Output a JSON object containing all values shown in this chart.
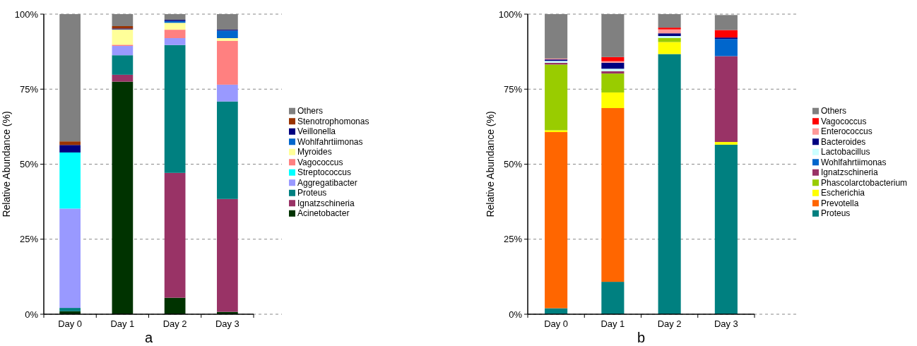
{
  "chart_data": [
    {
      "type": "bar",
      "stacked": true,
      "xlabel": "a",
      "ylabel": "Relative Abundance (%)",
      "categories": [
        "Day 0",
        "Day 1",
        "Day 2",
        "Day 3"
      ],
      "ylim": [
        0,
        100
      ],
      "yticks": [
        {
          "value": 0,
          "label": "0%"
        },
        {
          "value": 25,
          "label": "25%"
        },
        {
          "value": 50,
          "label": "50%"
        },
        {
          "value": 75,
          "label": "75%"
        },
        {
          "value": 100,
          "label": "100%"
        }
      ],
      "grid": "y",
      "legend": "right",
      "series": [
        {
          "name": "Acinetobacter",
          "color": "#003300",
          "values": [
            1.0,
            77.5,
            5.5,
            0.8
          ]
        },
        {
          "name": "Ignatzschineria",
          "color": "#993366",
          "values": [
            0,
            2.3,
            41.6,
            37.6
          ]
        },
        {
          "name": "Proteus",
          "color": "#008080",
          "values": [
            1.1,
            6.5,
            42.6,
            32.5
          ]
        },
        {
          "name": "Aggregatibacter",
          "color": "#9999ff",
          "values": [
            33.1,
            3.1,
            2.3,
            5.6
          ]
        },
        {
          "name": "Streptococcus",
          "color": "#00ffff",
          "values": [
            18.7,
            0,
            0,
            0
          ]
        },
        {
          "name": "Vagococcus",
          "color": "#ff8080",
          "values": [
            0,
            0.4,
            2.8,
            14.6
          ]
        },
        {
          "name": "Myroides",
          "color": "#ffff99",
          "values": [
            0,
            5.1,
            2.3,
            0.9
          ]
        },
        {
          "name": "Wohlfahrtiimonas",
          "color": "#0066cc",
          "values": [
            0,
            0,
            0.6,
            2.5
          ]
        },
        {
          "name": "Veillonella",
          "color": "#000080",
          "values": [
            2.5,
            0.3,
            0.4,
            0.3
          ]
        },
        {
          "name": "Stenotrophomonas",
          "color": "#993300",
          "values": [
            1.2,
            0.8,
            0,
            0
          ]
        },
        {
          "name": "Others",
          "color": "#808080",
          "values": [
            42.4,
            4.0,
            1.9,
            5.2
          ]
        }
      ]
    },
    {
      "type": "bar",
      "stacked": true,
      "xlabel": "b",
      "ylabel": "Relative Abundance (%)",
      "categories": [
        "Day 0",
        "Day 1",
        "Day 2",
        "Day 3"
      ],
      "ylim": [
        0,
        100
      ],
      "yticks": [
        {
          "value": 0,
          "label": "0%"
        },
        {
          "value": 25,
          "label": "25%"
        },
        {
          "value": 50,
          "label": "50%"
        },
        {
          "value": 75,
          "label": "75%"
        },
        {
          "value": 100,
          "label": "100%"
        }
      ],
      "grid": "y",
      "legend": "right",
      "series": [
        {
          "name": "Proteus",
          "color": "#008080",
          "values": [
            2.0,
            10.8,
            86.7,
            56.5
          ]
        },
        {
          "name": "Prevotella",
          "color": "#ff6600",
          "values": [
            58.7,
            57.9,
            0,
            0
          ]
        },
        {
          "name": "Escherichia",
          "color": "#ffff00",
          "values": [
            0.6,
            5.2,
            4.0,
            0.9
          ]
        },
        {
          "name": "Phascolarctobacterium",
          "color": "#99cc00",
          "values": [
            21.9,
            6.3,
            1.4,
            0
          ]
        },
        {
          "name": "Ignatzschineria",
          "color": "#993366",
          "values": [
            0.6,
            0.8,
            0,
            28.6
          ]
        },
        {
          "name": "Wohlfahrtiimonas",
          "color": "#0066cc",
          "values": [
            0,
            0,
            0,
            5.7
          ]
        },
        {
          "name": "Lactobacillus",
          "color": "#ccffff",
          "values": [
            0.6,
            0.8,
            0.6,
            null
          ]
        },
        {
          "name": "Bacteroides",
          "color": "#000080",
          "values": [
            0.5,
            2.0,
            0.9,
            0.5
          ]
        },
        {
          "name": "Enterococcus",
          "color": "#ff9999",
          "values": [
            0.3,
            0.5,
            1.3,
            0
          ]
        },
        {
          "name": "Vagococcus",
          "color": "#ff0000",
          "values": [
            0,
            1.4,
            0.6,
            2.5
          ]
        },
        {
          "name": "Others",
          "color": "#808080",
          "values": [
            14.8,
            14.3,
            4.5,
            5.0
          ]
        }
      ]
    }
  ]
}
